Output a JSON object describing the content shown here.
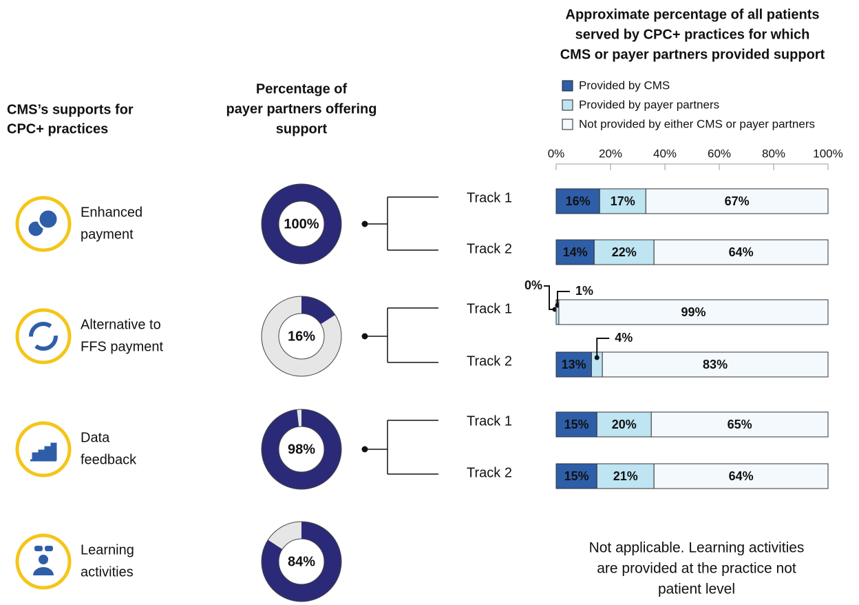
{
  "supports_header": [
    "CMS’s supports for",
    "CPC+ practices"
  ],
  "supports": [
    [
      "Enhanced",
      "payment"
    ],
    [
      "Alternative to",
      "FFS payment"
    ],
    [
      "Data",
      "feedback"
    ],
    [
      "Learning",
      "activities"
    ]
  ],
  "chart_data": [
    {
      "type": "donut",
      "title": [
        "Percentage of",
        "payer partners offering",
        "support"
      ],
      "values": [
        100,
        16,
        98,
        84
      ],
      "value_labels": [
        "100%",
        "16%",
        "98%",
        "84%"
      ],
      "color": "#2b2a78",
      "rest_color": "#e6e6e6"
    },
    {
      "type": "stacked-bar",
      "title": [
        "Approximate percentage of all patients",
        "served by CPC+ practices for which",
        "CMS or payer partners provided support"
      ],
      "categories": [
        "Track 1",
        "Track 2",
        "Track 1",
        "Track 2",
        "Track 1",
        "Track 2"
      ],
      "series": [
        {
          "name": "Provided by CMS",
          "color": "#2e5ea8",
          "values": [
            16,
            14,
            0,
            13,
            15,
            15
          ],
          "value_labels": [
            "16%",
            "14%",
            "0%",
            "13%",
            "15%",
            "15%"
          ]
        },
        {
          "name": "Provided by payer partners",
          "color": "#bfe4f2",
          "values": [
            17,
            22,
            1,
            4,
            20,
            21
          ],
          "value_labels": [
            "17%",
            "22%",
            "1%",
            "4%",
            "20%",
            "21%"
          ]
        },
        {
          "name": "Not provided by either CMS or payer partners",
          "color": "#f3f9fc",
          "values": [
            67,
            64,
            99,
            83,
            65,
            64
          ],
          "value_labels": [
            "67%",
            "64%",
            "99%",
            "83%",
            "65%",
            "64%"
          ]
        }
      ],
      "xlim": [
        0,
        100
      ],
      "xticks": [
        {
          "value": 0,
          "label": "0%"
        },
        {
          "value": 20,
          "label": "20%"
        },
        {
          "value": 40,
          "label": "40%"
        },
        {
          "value": 60,
          "label": "60%"
        },
        {
          "value": 80,
          "label": "80%"
        },
        {
          "value": 100,
          "label": "100%"
        }
      ],
      "note": [
        "Not applicable. Learning activities",
        "are provided at the practice not",
        "patient level"
      ]
    }
  ]
}
